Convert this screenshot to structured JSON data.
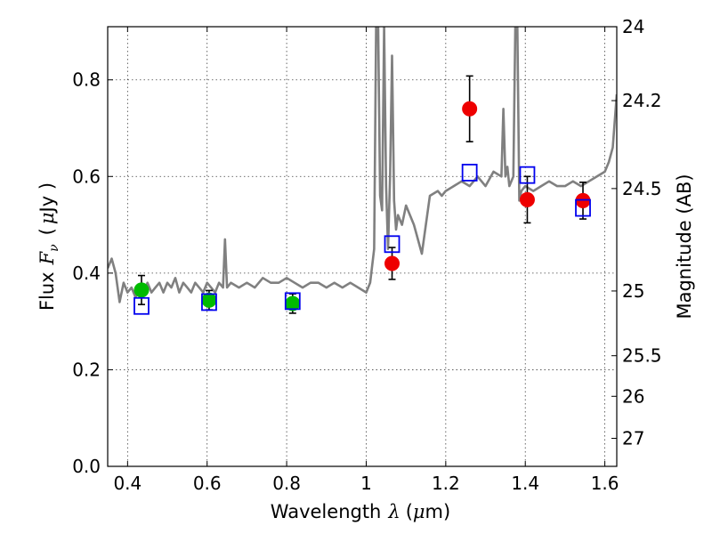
{
  "chart_data": {
    "type": "scatter",
    "xlabel_text": "Wavelength",
    "xlabel_symbol": "λ",
    "xlabel_unit_open": "(",
    "xlabel_unit_mu": "μ",
    "xlabel_unit_rest": "m)",
    "ylabel_text": "Flux",
    "ylabel_symbol": "F",
    "ylabel_sub": "ν",
    "ylabel_unit_open": "(",
    "ylabel_unit_mu": "μ",
    "ylabel_unit_rest": "Jy )",
    "y2label": "Magnitude (AB)",
    "xlim": [
      0.35,
      1.63
    ],
    "ylim": [
      0.0,
      0.91
    ],
    "x_ticks": [
      {
        "value": 0.4,
        "label": "0.4"
      },
      {
        "value": 0.6,
        "label": "0.6"
      },
      {
        "value": 0.8,
        "label": "0.8"
      },
      {
        "value": 1.0,
        "label": "1"
      },
      {
        "value": 1.2,
        "label": "1.2"
      },
      {
        "value": 1.4,
        "label": "1.4"
      },
      {
        "value": 1.6,
        "label": "1.6"
      }
    ],
    "y_ticks": [
      {
        "value": 0.0,
        "label": "0.0"
      },
      {
        "value": 0.2,
        "label": "0.2"
      },
      {
        "value": 0.4,
        "label": "0.4"
      },
      {
        "value": 0.6,
        "label": "0.6"
      },
      {
        "value": 0.8,
        "label": "0.8"
      }
    ],
    "y2_ticks": [
      {
        "flux": 0.912,
        "label": "24"
      },
      {
        "flux": 0.757,
        "label": "24.2"
      },
      {
        "flux": 0.575,
        "label": "24.5"
      },
      {
        "flux": 0.363,
        "label": "25"
      },
      {
        "flux": 0.229,
        "label": "25.5"
      },
      {
        "flux": 0.145,
        "label": "26"
      },
      {
        "flux": 0.058,
        "label": "27"
      }
    ],
    "grid": true,
    "series": [
      {
        "kind": "line",
        "color": "#808080",
        "x": [
          0.35,
          0.36,
          0.37,
          0.38,
          0.39,
          0.4,
          0.41,
          0.42,
          0.43,
          0.44,
          0.45,
          0.46,
          0.47,
          0.48,
          0.49,
          0.5,
          0.51,
          0.52,
          0.53,
          0.54,
          0.55,
          0.56,
          0.57,
          0.58,
          0.59,
          0.6,
          0.61,
          0.62,
          0.63,
          0.64,
          0.645,
          0.65,
          0.66,
          0.68,
          0.7,
          0.72,
          0.74,
          0.76,
          0.78,
          0.8,
          0.82,
          0.84,
          0.86,
          0.88,
          0.9,
          0.92,
          0.94,
          0.96,
          0.98,
          1.0,
          1.01,
          1.02,
          1.025,
          1.03,
          1.035,
          1.04,
          1.045,
          1.05,
          1.055,
          1.06,
          1.065,
          1.07,
          1.075,
          1.08,
          1.09,
          1.1,
          1.12,
          1.14,
          1.16,
          1.18,
          1.19,
          1.2,
          1.22,
          1.24,
          1.26,
          1.28,
          1.3,
          1.32,
          1.34,
          1.345,
          1.35,
          1.355,
          1.36,
          1.37,
          1.375,
          1.38,
          1.385,
          1.39,
          1.4,
          1.42,
          1.44,
          1.46,
          1.48,
          1.5,
          1.52,
          1.54,
          1.56,
          1.58,
          1.6,
          1.61,
          1.62,
          1.63
        ],
        "y": [
          0.41,
          0.43,
          0.4,
          0.34,
          0.38,
          0.36,
          0.37,
          0.35,
          0.37,
          0.36,
          0.38,
          0.36,
          0.37,
          0.38,
          0.36,
          0.38,
          0.37,
          0.39,
          0.36,
          0.38,
          0.37,
          0.36,
          0.38,
          0.37,
          0.36,
          0.38,
          0.37,
          0.36,
          0.38,
          0.37,
          0.47,
          0.37,
          0.38,
          0.37,
          0.38,
          0.37,
          0.39,
          0.38,
          0.38,
          0.39,
          0.38,
          0.37,
          0.38,
          0.38,
          0.37,
          0.38,
          0.37,
          0.38,
          0.37,
          0.36,
          0.38,
          0.45,
          0.91,
          0.91,
          0.56,
          0.53,
          0.91,
          0.58,
          0.45,
          0.6,
          0.85,
          0.55,
          0.49,
          0.52,
          0.5,
          0.54,
          0.5,
          0.44,
          0.56,
          0.57,
          0.56,
          0.57,
          0.58,
          0.59,
          0.58,
          0.6,
          0.58,
          0.61,
          0.6,
          0.74,
          0.6,
          0.62,
          0.58,
          0.6,
          0.91,
          0.91,
          0.55,
          0.57,
          0.58,
          0.57,
          0.58,
          0.59,
          0.58,
          0.58,
          0.59,
          0.58,
          0.59,
          0.6,
          0.61,
          0.63,
          0.66,
          0.77
        ]
      },
      {
        "kind": "points",
        "marker": "circle",
        "color": "#00bb00",
        "x": [
          0.435,
          0.605,
          0.815
        ],
        "y": [
          0.365,
          0.344,
          0.337
        ],
        "err": [
          0.03,
          0.02,
          0.02
        ]
      },
      {
        "kind": "points",
        "marker": "circle",
        "color": "#ee0000",
        "x": [
          1.065,
          1.26,
          1.405,
          1.545
        ],
        "y": [
          0.42,
          0.74,
          0.552,
          0.55
        ],
        "err": [
          0.033,
          0.068,
          0.048,
          0.038
        ]
      },
      {
        "kind": "points",
        "marker": "open-square",
        "color": "#0000ee",
        "x": [
          0.435,
          0.605,
          0.815,
          1.065,
          1.26,
          1.405,
          1.545
        ],
        "y": [
          0.332,
          0.34,
          0.342,
          0.46,
          0.608,
          0.603,
          0.535
        ]
      }
    ]
  }
}
